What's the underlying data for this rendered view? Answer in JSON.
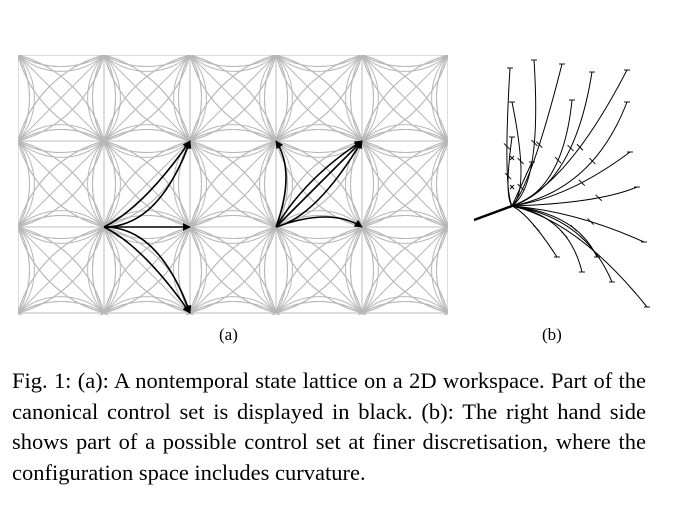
{
  "figure": {
    "subfigure_a_label": "(a)",
    "subfigure_b_label": "(b)",
    "caption": "Fig. 1: (a): A nontemporal state lattice on a 2D workspace. Part of the canonical control set is displayed in black. (b): The right hand side shows part of a possible control set at finer discretisation, where the configuration space includes curvature.",
    "colors": {
      "lattice": "#b8b8b8",
      "control_set": "#000000"
    }
  }
}
